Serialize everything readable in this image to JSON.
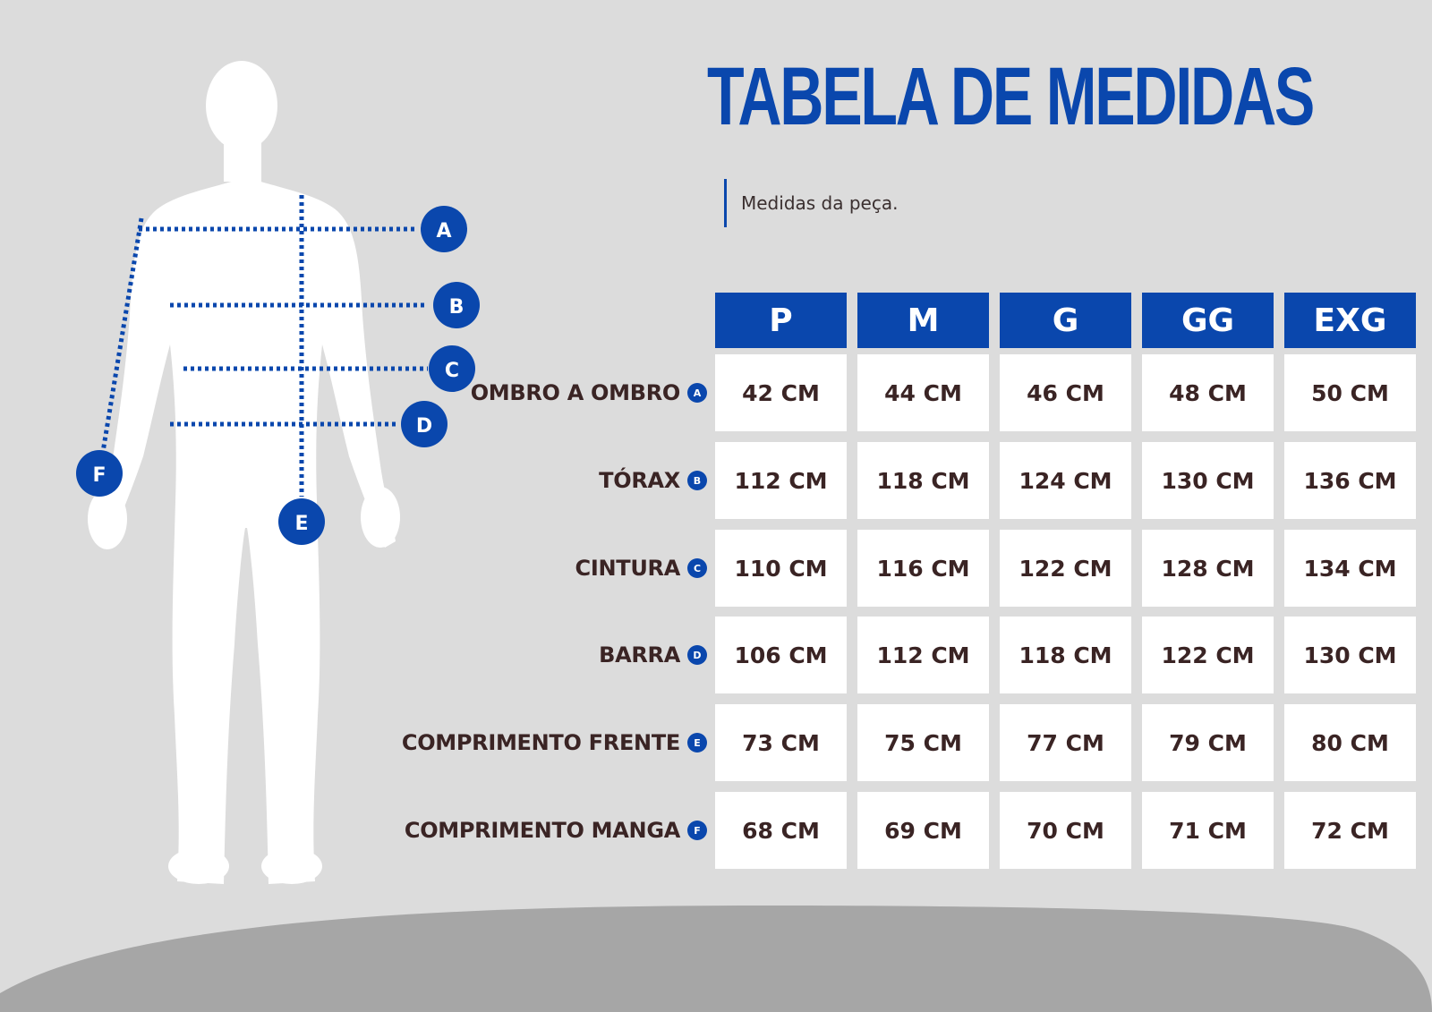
{
  "page": {
    "title": "TABELA DE MEDIDAS",
    "subtitle": "Medidas da peça."
  },
  "colors": {
    "accent": "#0a47ad",
    "background": "#dcdcdc",
    "floor": "#a6a6a6",
    "text": "#3a2424"
  },
  "figure_markers": [
    "A",
    "B",
    "C",
    "D",
    "E",
    "F"
  ],
  "table": {
    "sizes": [
      "P",
      "M",
      "G",
      "GG",
      "EXG"
    ],
    "rows": [
      {
        "label": "OMBRO A OMBRO",
        "badge": "A",
        "values": [
          "42 CM",
          "44 CM",
          "46 CM",
          "48 CM",
          "50 CM"
        ]
      },
      {
        "label": "TÓRAX",
        "badge": "B",
        "values": [
          "112 CM",
          "118 CM",
          "124 CM",
          "130 CM",
          "136 CM"
        ]
      },
      {
        "label": "CINTURA",
        "badge": "C",
        "values": [
          "110 CM",
          "116 CM",
          "122 CM",
          "128 CM",
          "134 CM"
        ]
      },
      {
        "label": "BARRA",
        "badge": "D",
        "values": [
          "106 CM",
          "112 CM",
          "118 CM",
          "122 CM",
          "130 CM"
        ]
      },
      {
        "label": "COMPRIMENTO FRENTE",
        "badge": "E",
        "values": [
          "73 CM",
          "75 CM",
          "77 CM",
          "79 CM",
          "80 CM"
        ]
      },
      {
        "label": "COMPRIMENTO MANGA",
        "badge": "F",
        "values": [
          "68 CM",
          "69 CM",
          "70 CM",
          "71 CM",
          "72 CM"
        ]
      }
    ]
  }
}
